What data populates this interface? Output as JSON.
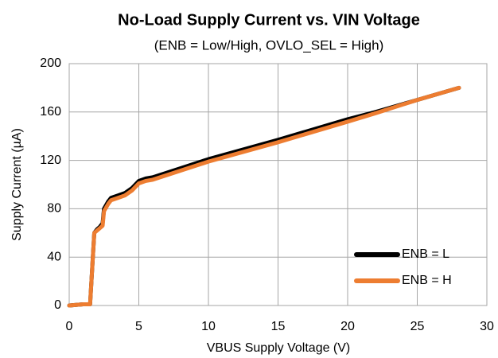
{
  "chart_data": {
    "type": "line",
    "title": "No-Load Supply Current vs. VIN Voltage",
    "subtitle": "(ENB = Low/High, OVLO_SEL = High)",
    "x_label": "VBUS Supply Voltage (V)",
    "y_label": "Supply Current (µA)",
    "x": [
      0,
      1,
      1.5,
      1.8,
      2,
      2.2,
      2.4,
      2.5,
      2.8,
      3,
      3.5,
      4,
      4.5,
      5,
      5.5,
      6,
      10,
      15,
      20,
      22,
      25,
      28
    ],
    "series": [
      {
        "name": "ENB = L",
        "color": "#000000",
        "values": [
          0,
          1,
          1,
          60,
          63,
          65,
          68,
          80,
          86,
          89,
          91,
          93,
          97,
          103,
          105,
          106,
          121,
          137,
          154,
          160,
          170,
          180
        ]
      },
      {
        "name": "ENB = H",
        "color": "#ed7d31",
        "values": [
          0,
          1,
          1,
          60,
          62,
          64,
          66,
          78,
          84,
          87,
          89,
          91,
          95,
          101,
          103,
          104,
          119,
          135,
          152,
          159,
          170,
          180
        ]
      }
    ],
    "xlim": [
      0,
      30
    ],
    "xticks": [
      0,
      5,
      10,
      15,
      20,
      25,
      30
    ],
    "ylim": [
      0,
      200
    ],
    "yticks": [
      0,
      40,
      80,
      120,
      160,
      200
    ],
    "grid": true,
    "legend": "lower right"
  }
}
